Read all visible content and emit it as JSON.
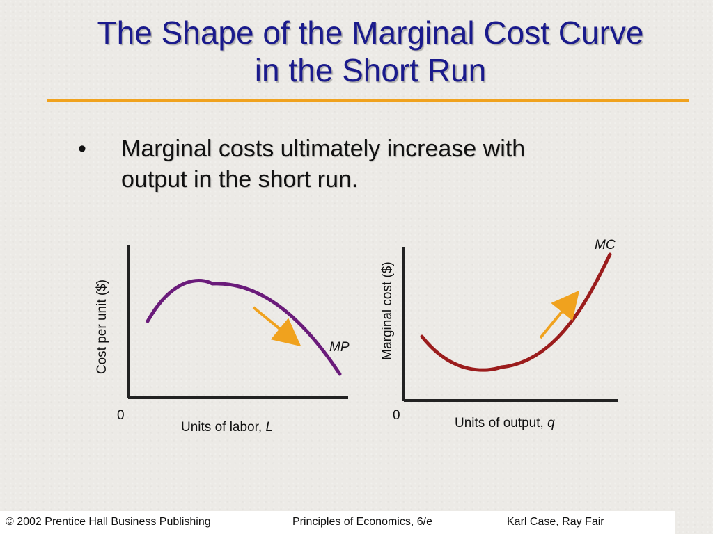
{
  "title": {
    "line1": "The Shape of the Marginal Cost Curve",
    "line2": "in the Short Run"
  },
  "bullet": {
    "symbol": "•",
    "line1": "Marginal costs ultimately increase with",
    "line2": "output in the short run."
  },
  "left_graph": {
    "y_axis_label": "Cost per unit ($)",
    "origin_label": "0",
    "x_axis_label_text": "Units of labor, ",
    "x_axis_label_var": "L",
    "curve_label": "MP",
    "curve_color": "#6a1b7a",
    "arrow_color": "#f0a21e"
  },
  "right_graph": {
    "y_axis_label": "Marginal cost ($)",
    "origin_label": "0",
    "x_axis_label_text": "Units of output, ",
    "x_axis_label_var": "q",
    "curve_label": "MC",
    "curve_color": "#9b1c1c",
    "arrow_color": "#f0a21e"
  },
  "footer": {
    "publisher": "© 2002 Prentice Hall Business Publishing",
    "book": "Principles of Economics, 6/e",
    "authors": "Karl Case, Ray Fair"
  }
}
